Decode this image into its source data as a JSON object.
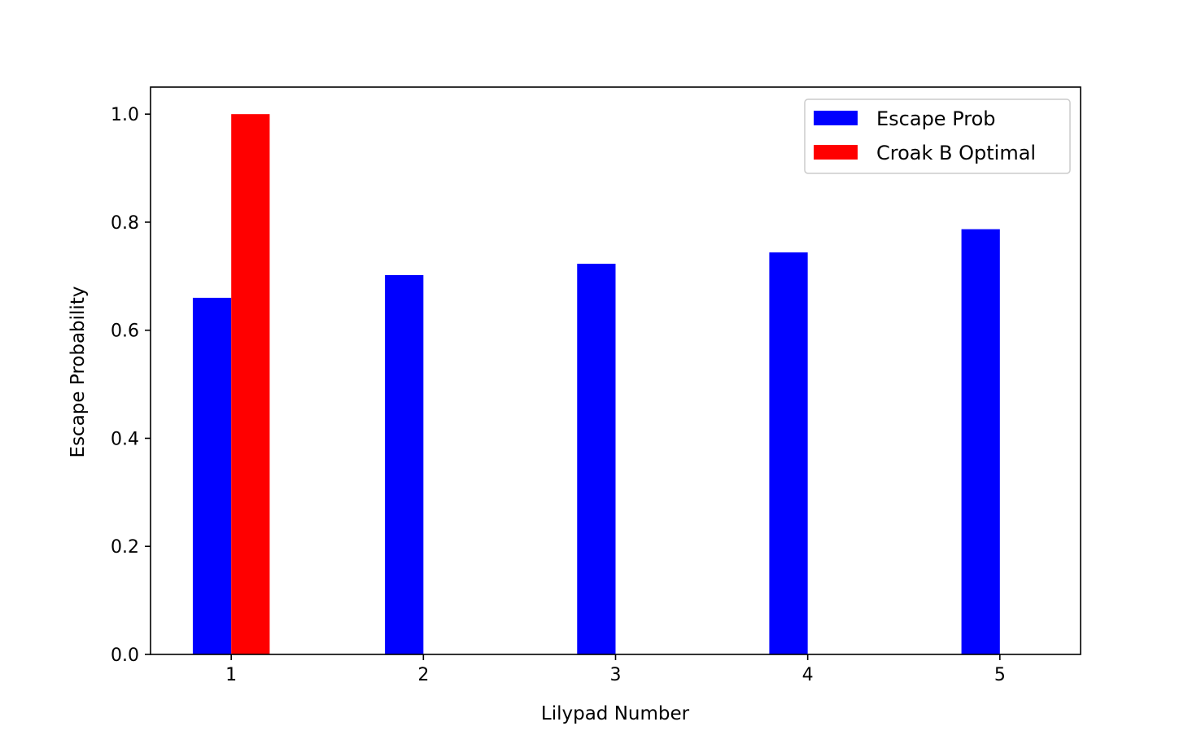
{
  "chart_data": {
    "type": "bar",
    "title": "",
    "xlabel": "Lilypad Number",
    "ylabel": "Escape Probability",
    "categories": [
      "1",
      "2",
      "3",
      "4",
      "5"
    ],
    "x": [
      1,
      2,
      3,
      4,
      5
    ],
    "xlim": [
      0.58,
      5.42
    ],
    "ylim": [
      0,
      1.05
    ],
    "yticks": [
      0.0,
      0.2,
      0.4,
      0.6,
      0.8,
      1.0
    ],
    "ytick_labels": [
      "0.0",
      "0.2",
      "0.4",
      "0.6",
      "0.8",
      "1.0"
    ],
    "grid": false,
    "legend_position": "top-right",
    "series": [
      {
        "name": "Escape Prob",
        "color": "#0000ff",
        "values": [
          0.66,
          0.702,
          0.723,
          0.744,
          0.787
        ]
      },
      {
        "name": "Croak B Optimal",
        "color": "#ff0000",
        "values": [
          1.0,
          0,
          0,
          0,
          0
        ]
      }
    ]
  }
}
